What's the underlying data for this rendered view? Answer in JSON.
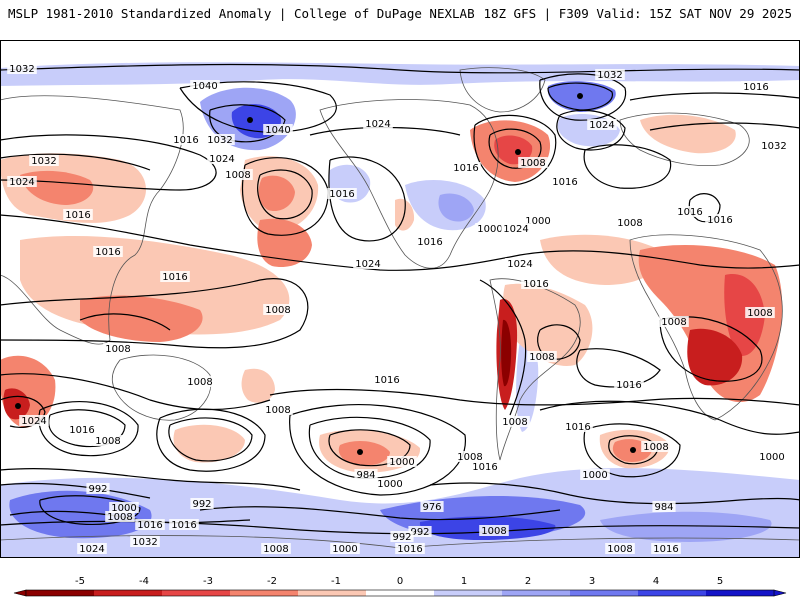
{
  "header": {
    "title_left": "MSLP 1981-2010 Standardized Anomaly | College of DuPage NEXLAB",
    "title_right": "18Z GFS | F309 Valid: 15Z SAT NOV 29 2025"
  },
  "colorbar": {
    "ticks": [
      "-5",
      "-4",
      "-3",
      "-2",
      "-1",
      "0",
      "1",
      "2",
      "3",
      "4",
      "5"
    ],
    "colors": {
      "neg5": "#8b0000",
      "neg4": "#c81e1e",
      "neg3": "#e64646",
      "neg2": "#f4846e",
      "neg1": "#fbc8b4",
      "zero": "#ffffff",
      "pos1": "#c8cdfa",
      "pos2": "#9ea5f5",
      "pos3": "#6f78ef",
      "pos4": "#3c44e6",
      "pos5": "#1414c8"
    }
  },
  "isobar_labels": [
    "1032",
    "1040",
    "1024",
    "1032",
    "1040",
    "1016",
    "1024",
    "1024",
    "1032",
    "1016",
    "1008",
    "1016",
    "1016",
    "1024",
    "1016",
    "1016",
    "1008",
    "1032",
    "1024",
    "1016",
    "1000",
    "1016",
    "1032",
    "1016",
    "1016",
    "1016",
    "1008",
    "1000",
    "1024",
    "1024",
    "1016",
    "1008",
    "1008",
    "1008",
    "1008",
    "1016",
    "1008",
    "1008",
    "1008",
    "1008",
    "1016",
    "1016",
    "1008",
    "1008",
    "1016",
    "1016",
    "1008",
    "992",
    "992",
    "984",
    "1000",
    "1000",
    "992",
    "976",
    "984",
    "1000",
    "992",
    "1008",
    "1000",
    "1024",
    "1032",
    "1008",
    "1016",
    "1008",
    "1016",
    "1000",
    "1016",
    "1008",
    "1024",
    "1016",
    "1000"
  ]
}
